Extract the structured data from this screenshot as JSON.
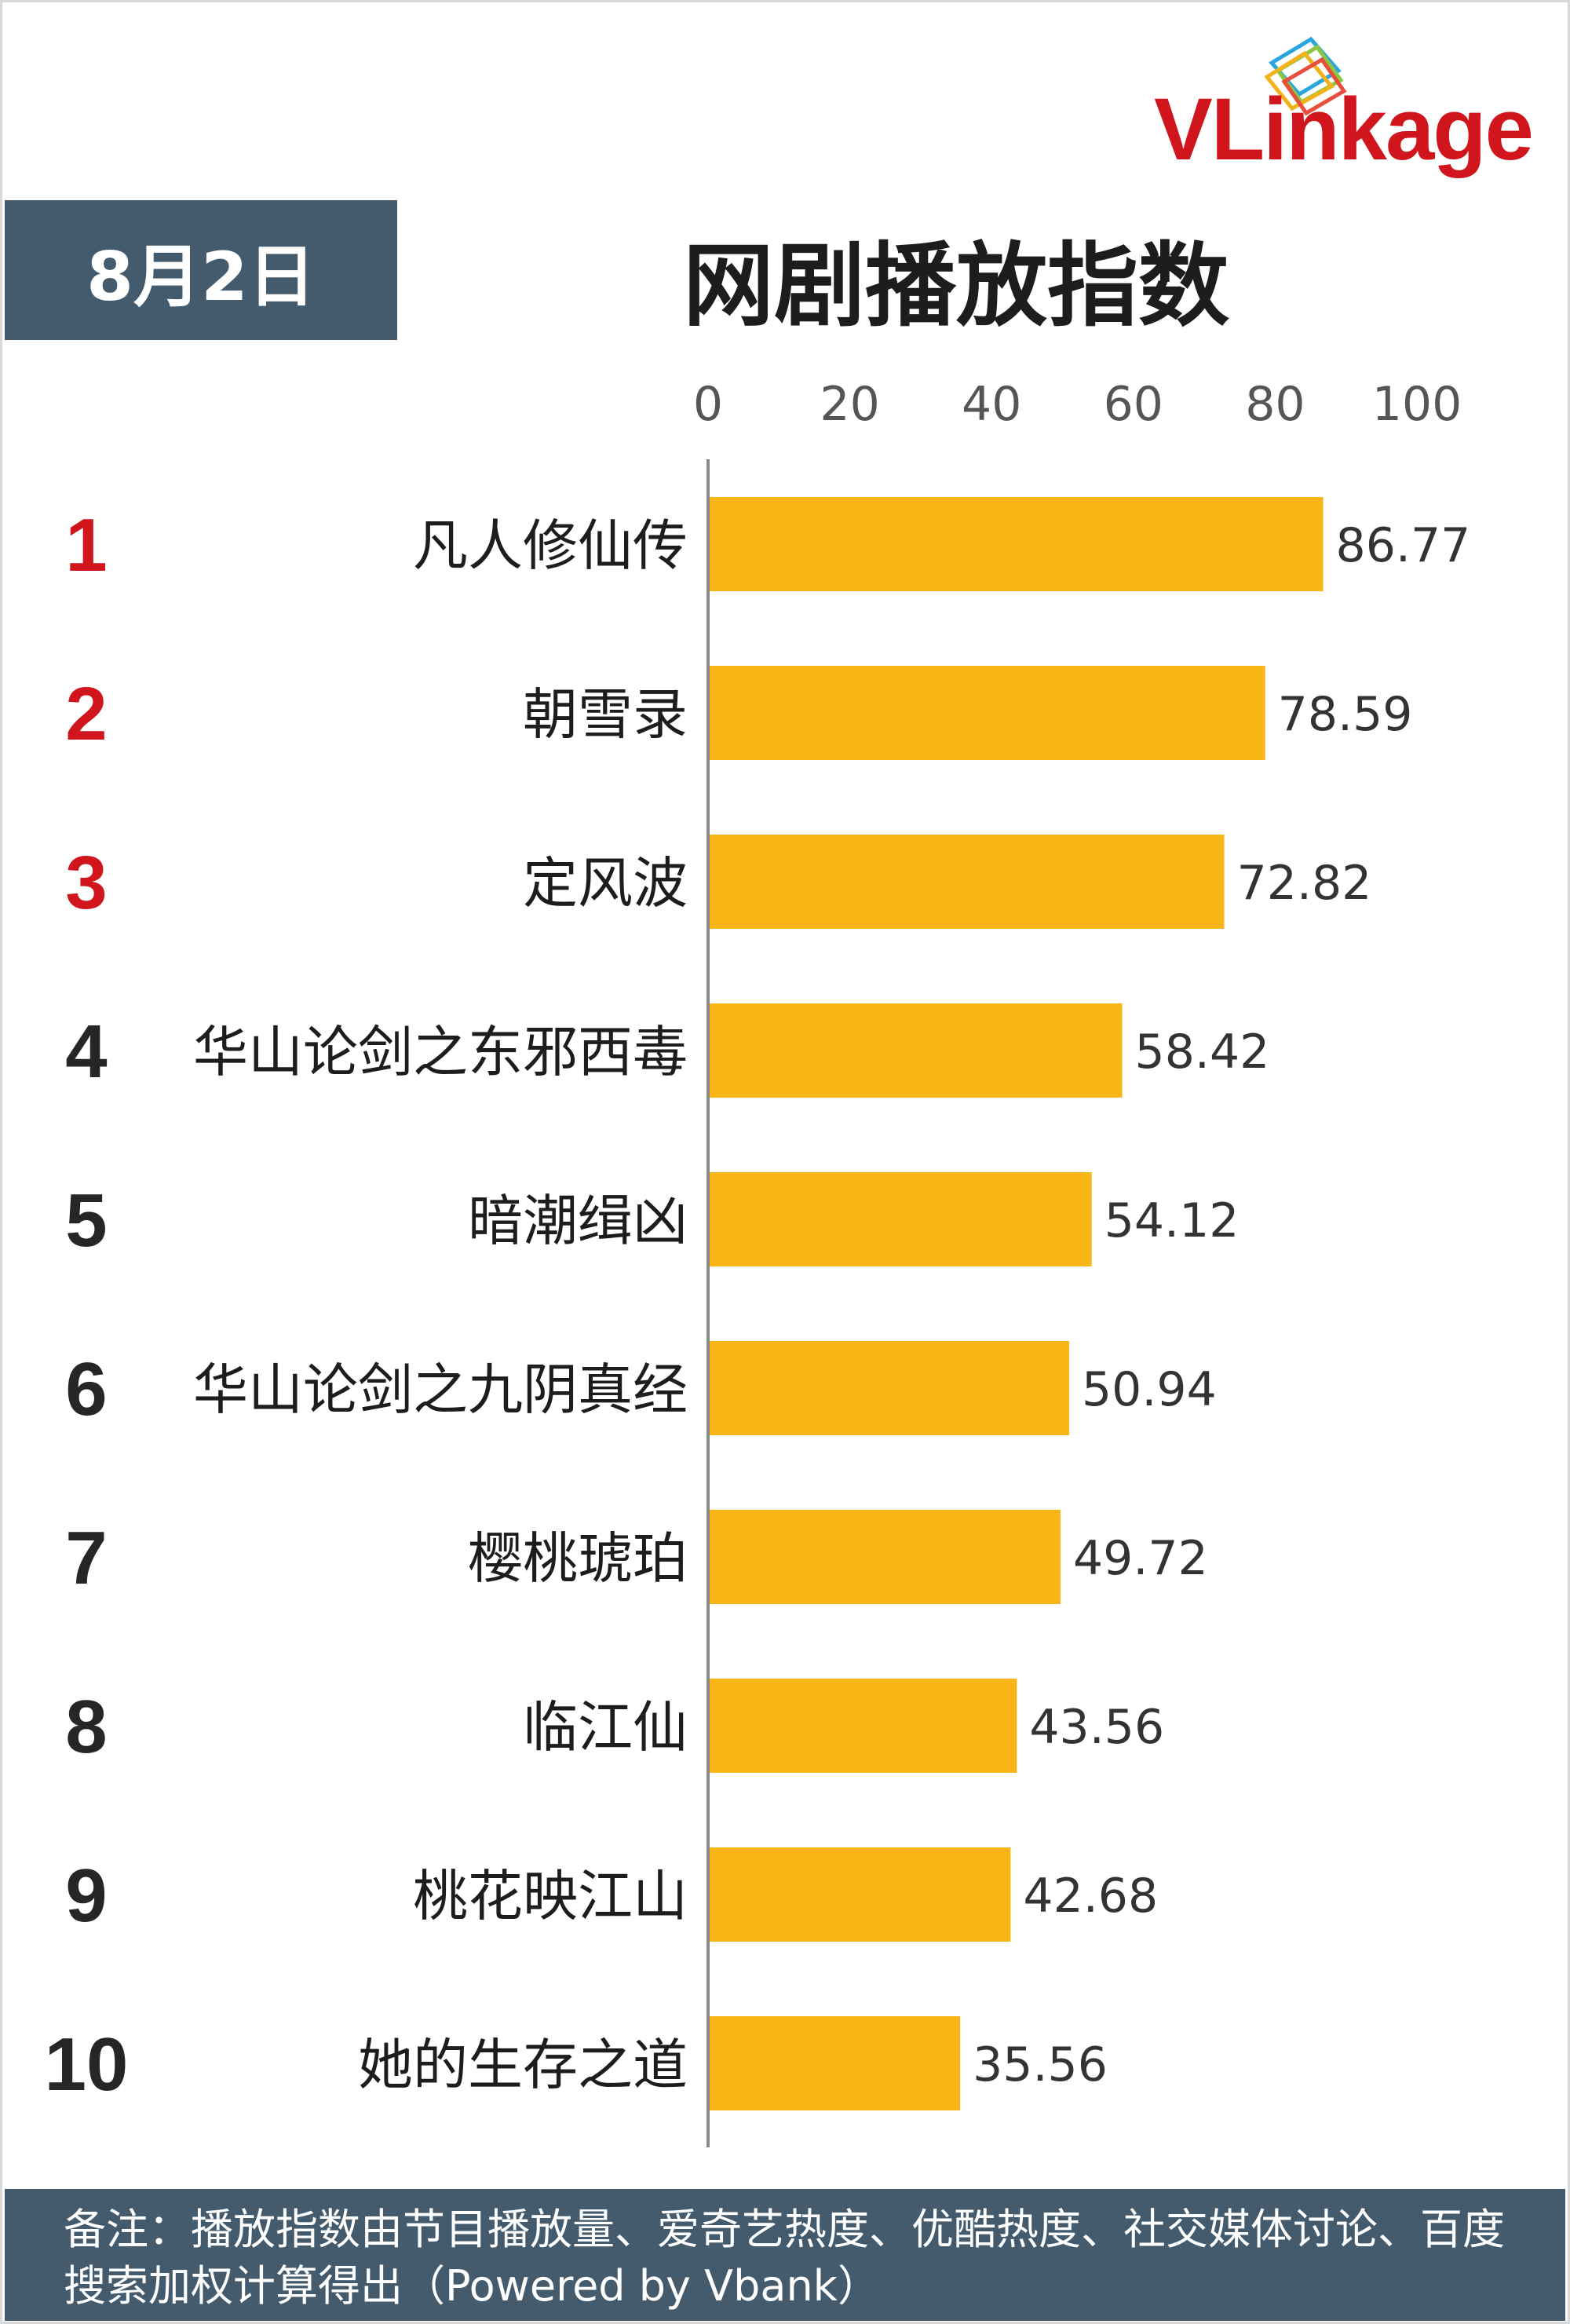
{
  "logo": {
    "text": "VLinkage"
  },
  "date": "8月2日",
  "title": "网剧播放指数",
  "note": "备注：播放指数由节目播放量、爱奇艺热度、优酷热度、社交媒体讨论、百度搜索加权计算得出（Powered by Vbank）",
  "colors": {
    "bar": "#F9B416",
    "rank_top": "#D0161C",
    "rank_other": "#262626",
    "header_bg": "#445B6E"
  },
  "chart_data": {
    "type": "bar",
    "orientation": "horizontal",
    "title": "网剧播放指数",
    "xlim": [
      0,
      100
    ],
    "x_ticks": [
      "0",
      "20",
      "40",
      "60",
      "80",
      "100"
    ],
    "grid": false,
    "ranks": [
      "1",
      "2",
      "3",
      "4",
      "5",
      "6",
      "7",
      "8",
      "9",
      "10"
    ],
    "categories": [
      "凡人修仙传",
      "朝雪录",
      "定风波",
      "华山论剑之东邪西毒",
      "暗潮缉凶",
      "华山论剑之九阴真经",
      "樱桃琥珀",
      "临江仙",
      "桃花映江山",
      "她的生存之道"
    ],
    "values": [
      86.77,
      78.59,
      72.82,
      58.42,
      54.12,
      50.94,
      49.72,
      43.56,
      42.68,
      35.56
    ],
    "value_labels": [
      "86.77",
      "78.59",
      "72.82",
      "58.42",
      "54.12",
      "50.94",
      "49.72",
      "43.56",
      "42.68",
      "35.56"
    ]
  }
}
